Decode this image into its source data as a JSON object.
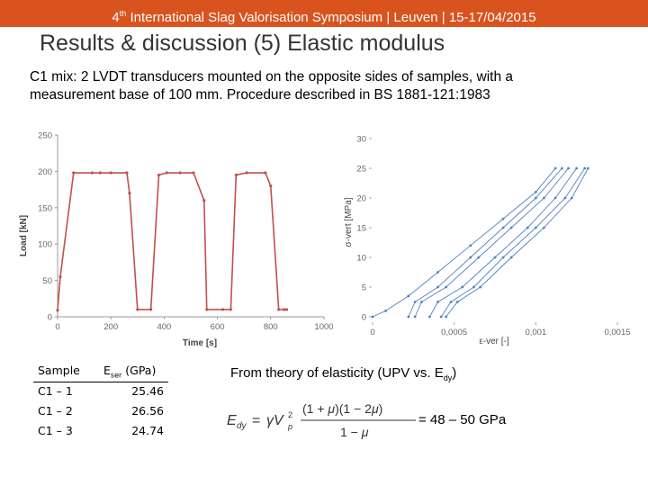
{
  "banner": {
    "prefix": "4",
    "sup": "th",
    "text": " International Slag Valorisation Symposium | Leuven | 15-17/04/2015"
  },
  "title": "Results & discussion (5) Elastic modulus",
  "intro": [
    "C1 mix: 2 LVDT transducers mounted on the opposite sides of samples, with a",
    "measurement base of 100 mm. Procedure described in BS 1881-121:1983"
  ],
  "colors": {
    "banner": "#d9531e",
    "load_line": "#c0504d",
    "stress_line": "#4f81bd"
  },
  "chart_data": [
    {
      "type": "line",
      "xlabel": "Time [s]",
      "ylabel": "Load [kN]",
      "xlim": [
        0,
        1000
      ],
      "ylim": [
        0,
        250
      ],
      "xticks": [
        "0",
        "200",
        "400",
        "600",
        "800",
        "1000"
      ],
      "yticks": [
        "0",
        "50",
        "100",
        "150",
        "200",
        "250"
      ],
      "grid": false,
      "series": [
        {
          "x": [
            0,
            10,
            60,
            130,
            160,
            200,
            260,
            270,
            300,
            350,
            380,
            410,
            460,
            510,
            550,
            560,
            620,
            650,
            670,
            710,
            780,
            800,
            830,
            850,
            860
          ],
          "y": [
            9,
            55,
            198,
            198,
            198,
            198,
            198,
            170,
            10,
            10,
            195,
            198,
            198,
            198,
            160,
            10,
            10,
            10,
            195,
            198,
            198,
            180,
            10,
            10,
            10
          ]
        }
      ]
    },
    {
      "type": "scatter",
      "xlabel": "ε-ver [-]",
      "ylabel": "σ-vert [MPa]",
      "xlim": [
        0,
        0.0015
      ],
      "ylim": [
        0,
        30
      ],
      "xticks": [
        "0",
        "0,0005",
        "0,001",
        "0,0015"
      ],
      "yticks": [
        "0",
        "5",
        "10",
        "15",
        "20",
        "25",
        "30"
      ],
      "grid": false,
      "series": [
        {
          "x": [
            0.00022,
            0.00026,
            0.0004,
            0.0006,
            0.0008,
            0.001,
            0.00116
          ],
          "y": [
            0,
            2.5,
            5,
            10,
            15,
            20,
            25
          ]
        },
        {
          "x": [
            0.00026,
            0.0003,
            0.00045,
            0.00065,
            0.00085,
            0.00105,
            0.0012
          ],
          "y": [
            0,
            2.5,
            5,
            10,
            15,
            20,
            25
          ]
        },
        {
          "x": [
            0.00035,
            0.0004,
            0.00055,
            0.00075,
            0.00095,
            0.00112,
            0.00125
          ],
          "y": [
            0,
            2.5,
            5,
            10,
            15,
            20,
            25
          ]
        },
        {
          "x": [
            0.00042,
            0.00048,
            0.00062,
            0.0008,
            0.001,
            0.00118,
            0.0013
          ],
          "y": [
            0,
            2.5,
            5,
            10,
            15,
            20,
            25
          ]
        },
        {
          "x": [
            0.00045,
            0.00052,
            0.00066,
            0.00085,
            0.00105,
            0.00122,
            0.00132
          ],
          "y": [
            0,
            2.5,
            5,
            10,
            15,
            20,
            25
          ]
        },
        {
          "x": [
            0.0,
            8e-05,
            0.00022,
            0.0004,
            0.0006,
            0.0008,
            0.001,
            0.00112
          ],
          "y": [
            0,
            1,
            3.5,
            7.5,
            12,
            16.5,
            21,
            25
          ]
        }
      ]
    }
  ],
  "table": {
    "col1": "Sample",
    "col2_main": "E",
    "col2_sub": "ser",
    "col2_unit": " (GPa)",
    "rows": [
      {
        "sample": "C1 – 1",
        "value": "25.46"
      },
      {
        "sample": "C1 – 2",
        "value": "26.56"
      },
      {
        "sample": "C1 – 3",
        "value": "24.74"
      }
    ]
  },
  "theory": {
    "text": "From theory of elasticity (UPV vs. E",
    "sub": "dy",
    "close": ")"
  },
  "result": "= 48 – 50 GPa"
}
